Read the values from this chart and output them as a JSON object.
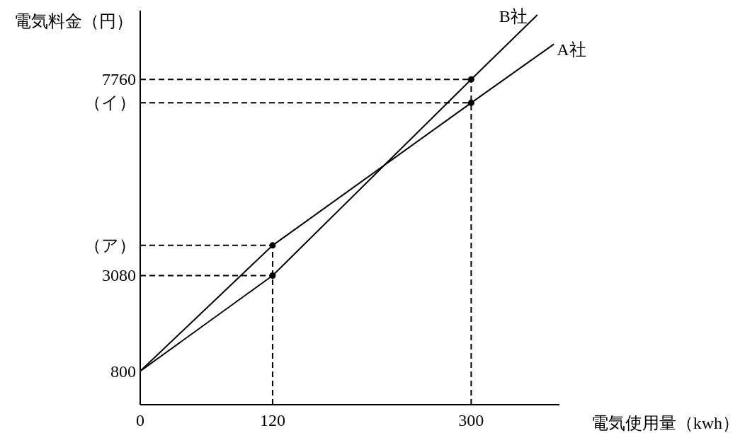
{
  "chart_data": {
    "type": "line",
    "xlabel": "電気使用量（kwh）",
    "ylabel": "電気料金（円）",
    "xlim": [
      0,
      380
    ],
    "ylim": [
      0,
      9400
    ],
    "xticks": [
      0,
      120,
      300
    ],
    "yticks": [
      800,
      3080,
      {
        "value": 3800,
        "label": "（ア）"
      },
      {
        "value": 7200,
        "label": "（イ）"
      },
      7760
    ],
    "grid": false,
    "series": [
      {
        "name": "A社",
        "color": "#000000",
        "x": [
          0,
          120,
          300,
          375
        ],
        "values": [
          800,
          3800,
          7200,
          8600
        ]
      },
      {
        "name": "B社",
        "color": "#000000",
        "x": [
          0,
          120,
          300,
          360
        ],
        "values": [
          800,
          3080,
          7760,
          9300
        ]
      },
      {
        "type": "scatter",
        "color": "#000000",
        "marker": "circle",
        "x": [
          120,
          120,
          300,
          300
        ],
        "values": [
          3080,
          3800,
          7200,
          7760
        ]
      }
    ],
    "ref_lines": [
      {
        "axis": "y",
        "value": 3080,
        "line_style": "dashed"
      },
      {
        "axis": "y",
        "value": 3800,
        "line_style": "dashed"
      },
      {
        "axis": "y",
        "value": 7200,
        "line_style": "dashed"
      },
      {
        "axis": "y",
        "value": 7760,
        "line_style": "dashed"
      },
      {
        "axis": "x",
        "value": 120,
        "line_style": "dashed"
      },
      {
        "axis": "x",
        "value": 300,
        "line_style": "dashed"
      }
    ]
  }
}
